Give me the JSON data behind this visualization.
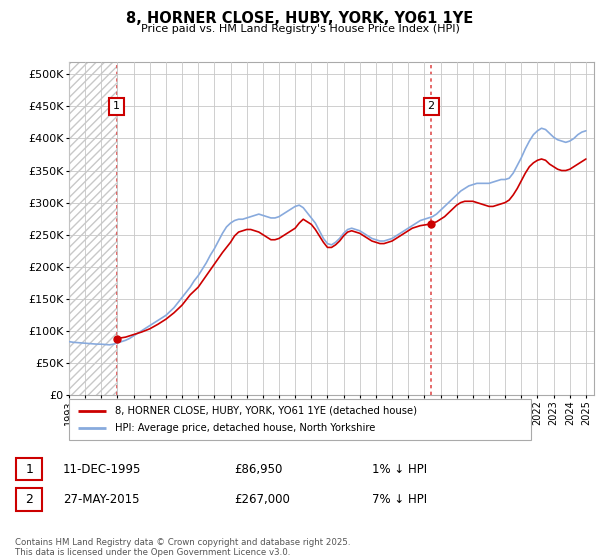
{
  "title": "8, HORNER CLOSE, HUBY, YORK, YO61 1YE",
  "subtitle": "Price paid vs. HM Land Registry's House Price Index (HPI)",
  "xlim": [
    1993.0,
    2025.5
  ],
  "ylim": [
    0,
    520000
  ],
  "yticks": [
    0,
    50000,
    100000,
    150000,
    200000,
    250000,
    300000,
    350000,
    400000,
    450000,
    500000
  ],
  "ytick_labels": [
    "£0",
    "£50K",
    "£100K",
    "£150K",
    "£200K",
    "£250K",
    "£300K",
    "£350K",
    "£400K",
    "£450K",
    "£500K"
  ],
  "xticks": [
    1993,
    1994,
    1995,
    1996,
    1997,
    1998,
    1999,
    2000,
    2001,
    2002,
    2003,
    2004,
    2005,
    2006,
    2007,
    2008,
    2009,
    2010,
    2011,
    2012,
    2013,
    2014,
    2015,
    2016,
    2017,
    2018,
    2019,
    2020,
    2021,
    2022,
    2023,
    2024,
    2025
  ],
  "sale1_x": 1995.95,
  "sale1_y": 86950,
  "sale2_x": 2015.42,
  "sale2_y": 267000,
  "vline_color": "#e05050",
  "price_line_color": "#cc0000",
  "hpi_line_color": "#88aadd",
  "legend_label1": "8, HORNER CLOSE, HUBY, YORK, YO61 1YE (detached house)",
  "legend_label2": "HPI: Average price, detached house, North Yorkshire",
  "table_row1": [
    "1",
    "11-DEC-1995",
    "£86,950",
    "1% ↓ HPI"
  ],
  "table_row2": [
    "2",
    "27-MAY-2015",
    "£267,000",
    "7% ↓ HPI"
  ],
  "footer": "Contains HM Land Registry data © Crown copyright and database right 2025.\nThis data is licensed under the Open Government Licence v3.0.",
  "hpi_data": [
    [
      1993.0,
      83000
    ],
    [
      1993.25,
      82000
    ],
    [
      1993.5,
      81500
    ],
    [
      1993.75,
      81000
    ],
    [
      1994.0,
      80500
    ],
    [
      1994.25,
      80000
    ],
    [
      1994.5,
      79500
    ],
    [
      1994.75,
      79000
    ],
    [
      1995.0,
      79000
    ],
    [
      1995.25,
      78500
    ],
    [
      1995.5,
      78000
    ],
    [
      1995.75,
      79000
    ],
    [
      1996.0,
      81000
    ],
    [
      1996.25,
      83000
    ],
    [
      1996.5,
      85000
    ],
    [
      1996.75,
      88000
    ],
    [
      1997.0,
      92000
    ],
    [
      1997.25,
      96000
    ],
    [
      1997.5,
      100000
    ],
    [
      1997.75,
      104000
    ],
    [
      1998.0,
      108000
    ],
    [
      1998.25,
      112000
    ],
    [
      1998.5,
      116000
    ],
    [
      1998.75,
      120000
    ],
    [
      1999.0,
      124000
    ],
    [
      1999.25,
      130000
    ],
    [
      1999.5,
      136000
    ],
    [
      1999.75,
      144000
    ],
    [
      2000.0,
      152000
    ],
    [
      2000.25,
      160000
    ],
    [
      2000.5,
      168000
    ],
    [
      2000.75,
      178000
    ],
    [
      2001.0,
      186000
    ],
    [
      2001.25,
      196000
    ],
    [
      2001.5,
      206000
    ],
    [
      2001.75,
      218000
    ],
    [
      2002.0,
      228000
    ],
    [
      2002.25,
      240000
    ],
    [
      2002.5,
      252000
    ],
    [
      2002.75,
      262000
    ],
    [
      2003.0,
      268000
    ],
    [
      2003.25,
      272000
    ],
    [
      2003.5,
      274000
    ],
    [
      2003.75,
      274000
    ],
    [
      2004.0,
      276000
    ],
    [
      2004.25,
      278000
    ],
    [
      2004.5,
      280000
    ],
    [
      2004.75,
      282000
    ],
    [
      2005.0,
      280000
    ],
    [
      2005.25,
      278000
    ],
    [
      2005.5,
      276000
    ],
    [
      2005.75,
      276000
    ],
    [
      2006.0,
      278000
    ],
    [
      2006.25,
      282000
    ],
    [
      2006.5,
      286000
    ],
    [
      2006.75,
      290000
    ],
    [
      2007.0,
      294000
    ],
    [
      2007.25,
      296000
    ],
    [
      2007.5,
      292000
    ],
    [
      2007.75,
      284000
    ],
    [
      2008.0,
      276000
    ],
    [
      2008.25,
      268000
    ],
    [
      2008.5,
      256000
    ],
    [
      2008.75,
      244000
    ],
    [
      2009.0,
      236000
    ],
    [
      2009.25,
      234000
    ],
    [
      2009.5,
      238000
    ],
    [
      2009.75,
      244000
    ],
    [
      2010.0,
      252000
    ],
    [
      2010.25,
      258000
    ],
    [
      2010.5,
      260000
    ],
    [
      2010.75,
      258000
    ],
    [
      2011.0,
      256000
    ],
    [
      2011.25,
      252000
    ],
    [
      2011.5,
      248000
    ],
    [
      2011.75,
      244000
    ],
    [
      2012.0,
      242000
    ],
    [
      2012.25,
      240000
    ],
    [
      2012.5,
      240000
    ],
    [
      2012.75,
      242000
    ],
    [
      2013.0,
      244000
    ],
    [
      2013.25,
      248000
    ],
    [
      2013.5,
      252000
    ],
    [
      2013.75,
      256000
    ],
    [
      2014.0,
      260000
    ],
    [
      2014.25,
      264000
    ],
    [
      2014.5,
      268000
    ],
    [
      2014.75,
      272000
    ],
    [
      2015.0,
      274000
    ],
    [
      2015.25,
      276000
    ],
    [
      2015.5,
      278000
    ],
    [
      2015.75,
      282000
    ],
    [
      2016.0,
      288000
    ],
    [
      2016.25,
      294000
    ],
    [
      2016.5,
      300000
    ],
    [
      2016.75,
      306000
    ],
    [
      2017.0,
      312000
    ],
    [
      2017.25,
      318000
    ],
    [
      2017.5,
      322000
    ],
    [
      2017.75,
      326000
    ],
    [
      2018.0,
      328000
    ],
    [
      2018.25,
      330000
    ],
    [
      2018.5,
      330000
    ],
    [
      2018.75,
      330000
    ],
    [
      2019.0,
      330000
    ],
    [
      2019.25,
      332000
    ],
    [
      2019.5,
      334000
    ],
    [
      2019.75,
      336000
    ],
    [
      2020.0,
      336000
    ],
    [
      2020.25,
      338000
    ],
    [
      2020.5,
      346000
    ],
    [
      2020.75,
      358000
    ],
    [
      2021.0,
      370000
    ],
    [
      2021.25,
      384000
    ],
    [
      2021.5,
      396000
    ],
    [
      2021.75,
      406000
    ],
    [
      2022.0,
      412000
    ],
    [
      2022.25,
      416000
    ],
    [
      2022.5,
      414000
    ],
    [
      2022.75,
      408000
    ],
    [
      2023.0,
      402000
    ],
    [
      2023.25,
      398000
    ],
    [
      2023.5,
      396000
    ],
    [
      2023.75,
      394000
    ],
    [
      2024.0,
      396000
    ],
    [
      2024.25,
      400000
    ],
    [
      2024.5,
      406000
    ],
    [
      2024.75,
      410000
    ],
    [
      2025.0,
      412000
    ]
  ],
  "price_data": [
    [
      1995.95,
      86950
    ],
    [
      1996.0,
      88000
    ],
    [
      1996.5,
      90000
    ],
    [
      1997.0,
      94000
    ],
    [
      1997.5,
      98000
    ],
    [
      1998.0,
      103000
    ],
    [
      1998.5,
      110000
    ],
    [
      1999.0,
      118000
    ],
    [
      1999.5,
      128000
    ],
    [
      2000.0,
      140000
    ],
    [
      2000.5,
      156000
    ],
    [
      2001.0,
      168000
    ],
    [
      2001.5,
      186000
    ],
    [
      2002.0,
      204000
    ],
    [
      2002.5,
      222000
    ],
    [
      2003.0,
      238000
    ],
    [
      2003.25,
      248000
    ],
    [
      2003.5,
      254000
    ],
    [
      2003.75,
      256000
    ],
    [
      2004.0,
      258000
    ],
    [
      2004.25,
      258000
    ],
    [
      2004.5,
      256000
    ],
    [
      2004.75,
      254000
    ],
    [
      2005.0,
      250000
    ],
    [
      2005.25,
      246000
    ],
    [
      2005.5,
      242000
    ],
    [
      2005.75,
      242000
    ],
    [
      2006.0,
      244000
    ],
    [
      2006.25,
      248000
    ],
    [
      2006.5,
      252000
    ],
    [
      2006.75,
      256000
    ],
    [
      2007.0,
      260000
    ],
    [
      2007.25,
      268000
    ],
    [
      2007.5,
      274000
    ],
    [
      2007.75,
      270000
    ],
    [
      2008.0,
      266000
    ],
    [
      2008.25,
      258000
    ],
    [
      2008.5,
      248000
    ],
    [
      2008.75,
      238000
    ],
    [
      2009.0,
      230000
    ],
    [
      2009.25,
      230000
    ],
    [
      2009.5,
      234000
    ],
    [
      2009.75,
      240000
    ],
    [
      2010.0,
      248000
    ],
    [
      2010.25,
      254000
    ],
    [
      2010.5,
      256000
    ],
    [
      2010.75,
      254000
    ],
    [
      2011.0,
      252000
    ],
    [
      2011.25,
      248000
    ],
    [
      2011.5,
      244000
    ],
    [
      2011.75,
      240000
    ],
    [
      2012.0,
      238000
    ],
    [
      2012.25,
      236000
    ],
    [
      2012.5,
      236000
    ],
    [
      2012.75,
      238000
    ],
    [
      2013.0,
      240000
    ],
    [
      2013.25,
      244000
    ],
    [
      2013.5,
      248000
    ],
    [
      2013.75,
      252000
    ],
    [
      2014.0,
      256000
    ],
    [
      2014.25,
      260000
    ],
    [
      2014.5,
      262000
    ],
    [
      2014.75,
      264000
    ],
    [
      2015.0,
      265000
    ],
    [
      2015.25,
      266000
    ],
    [
      2015.42,
      267000
    ],
    [
      2015.5,
      268000
    ],
    [
      2015.75,
      270000
    ],
    [
      2016.0,
      274000
    ],
    [
      2016.25,
      278000
    ],
    [
      2016.5,
      284000
    ],
    [
      2016.75,
      290000
    ],
    [
      2017.0,
      296000
    ],
    [
      2017.25,
      300000
    ],
    [
      2017.5,
      302000
    ],
    [
      2017.75,
      302000
    ],
    [
      2018.0,
      302000
    ],
    [
      2018.25,
      300000
    ],
    [
      2018.5,
      298000
    ],
    [
      2018.75,
      296000
    ],
    [
      2019.0,
      294000
    ],
    [
      2019.25,
      294000
    ],
    [
      2019.5,
      296000
    ],
    [
      2019.75,
      298000
    ],
    [
      2020.0,
      300000
    ],
    [
      2020.25,
      304000
    ],
    [
      2020.5,
      312000
    ],
    [
      2020.75,
      322000
    ],
    [
      2021.0,
      334000
    ],
    [
      2021.25,
      346000
    ],
    [
      2021.5,
      356000
    ],
    [
      2021.75,
      362000
    ],
    [
      2022.0,
      366000
    ],
    [
      2022.25,
      368000
    ],
    [
      2022.5,
      366000
    ],
    [
      2022.75,
      360000
    ],
    [
      2023.0,
      356000
    ],
    [
      2023.25,
      352000
    ],
    [
      2023.5,
      350000
    ],
    [
      2023.75,
      350000
    ],
    [
      2024.0,
      352000
    ],
    [
      2024.25,
      356000
    ],
    [
      2024.5,
      360000
    ],
    [
      2024.75,
      364000
    ],
    [
      2025.0,
      368000
    ]
  ]
}
